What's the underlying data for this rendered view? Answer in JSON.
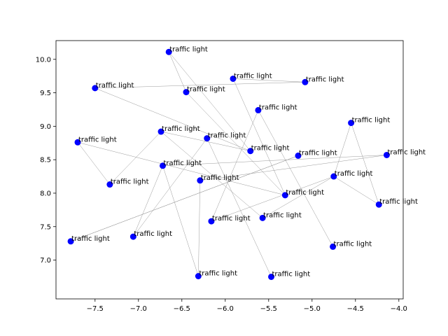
{
  "chart_data": {
    "type": "scatter",
    "title": "",
    "xlabel": "",
    "ylabel": "",
    "xlim": [
      -7.95,
      -3.95
    ],
    "ylim": [
      6.42,
      10.28
    ],
    "xticks": [
      -7.5,
      -7.0,
      -6.5,
      -6.0,
      -5.5,
      -5.0,
      -4.5,
      -4.0
    ],
    "xtick_labels": [
      "−7.5",
      "−7.0",
      "−6.5",
      "−6.0",
      "−5.5",
      "−5.0",
      "−4.5",
      "−4.0"
    ],
    "yticks": [
      7.0,
      7.5,
      8.0,
      8.5,
      9.0,
      9.5,
      10.0
    ],
    "ytick_labels": [
      "7.0",
      "7.5",
      "8.0",
      "8.5",
      "9.0",
      "9.5",
      "10.0"
    ],
    "grid": false,
    "marker_color": "#0000ff",
    "edge_color": "#9a9a9a",
    "points": [
      {
        "x": -6.65,
        "y": 10.11,
        "label": "traffic light"
      },
      {
        "x": -5.91,
        "y": 9.71,
        "label": "traffic light"
      },
      {
        "x": -5.08,
        "y": 9.66,
        "label": "traffic light"
      },
      {
        "x": -7.5,
        "y": 9.57,
        "label": "traffic light"
      },
      {
        "x": -6.45,
        "y": 9.51,
        "label": "traffic light"
      },
      {
        "x": -5.62,
        "y": 9.24,
        "label": "traffic light"
      },
      {
        "x": -4.55,
        "y": 9.05,
        "label": "traffic light"
      },
      {
        "x": -6.74,
        "y": 8.92,
        "label": "traffic light"
      },
      {
        "x": -6.21,
        "y": 8.82,
        "label": "traffic light"
      },
      {
        "x": -7.7,
        "y": 8.76,
        "label": "traffic light"
      },
      {
        "x": -5.71,
        "y": 8.63,
        "label": "traffic light"
      },
      {
        "x": -4.14,
        "y": 8.57,
        "label": "traffic light"
      },
      {
        "x": -5.16,
        "y": 8.56,
        "label": "traffic light"
      },
      {
        "x": -6.72,
        "y": 8.41,
        "label": "traffic light"
      },
      {
        "x": -4.75,
        "y": 8.25,
        "label": "traffic light"
      },
      {
        "x": -6.29,
        "y": 8.19,
        "label": "traffic light"
      },
      {
        "x": -7.33,
        "y": 8.13,
        "label": "traffic light"
      },
      {
        "x": -5.31,
        "y": 7.97,
        "label": "traffic light"
      },
      {
        "x": -4.23,
        "y": 7.83,
        "label": "traffic light"
      },
      {
        "x": -5.57,
        "y": 7.63,
        "label": "traffic light"
      },
      {
        "x": -6.16,
        "y": 7.58,
        "label": "traffic light"
      },
      {
        "x": -7.06,
        "y": 7.35,
        "label": "traffic light"
      },
      {
        "x": -7.78,
        "y": 7.28,
        "label": "traffic light"
      },
      {
        "x": -4.76,
        "y": 7.2,
        "label": "traffic light"
      },
      {
        "x": -6.31,
        "y": 6.76,
        "label": "traffic light"
      },
      {
        "x": -5.47,
        "y": 6.75,
        "label": "traffic light"
      }
    ],
    "edges": [
      [
        0,
        4
      ],
      [
        0,
        10
      ],
      [
        1,
        2
      ],
      [
        1,
        17
      ],
      [
        2,
        3
      ],
      [
        3,
        10
      ],
      [
        4,
        17
      ],
      [
        5,
        20
      ],
      [
        5,
        23
      ],
      [
        6,
        14
      ],
      [
        6,
        18
      ],
      [
        7,
        10
      ],
      [
        7,
        19
      ],
      [
        8,
        21
      ],
      [
        8,
        25
      ],
      [
        9,
        16
      ],
      [
        9,
        17
      ],
      [
        12,
        22
      ],
      [
        11,
        13
      ],
      [
        13,
        24
      ],
      [
        13,
        21
      ],
      [
        14,
        20
      ],
      [
        15,
        24
      ],
      [
        15,
        11
      ],
      [
        16,
        7
      ],
      [
        18,
        14
      ],
      [
        19,
        14
      ],
      [
        22,
        12
      ]
    ]
  }
}
